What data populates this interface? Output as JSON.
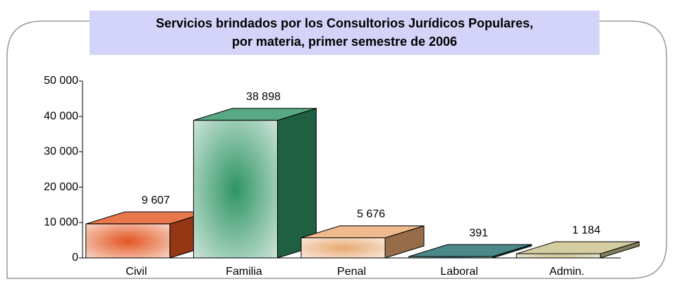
{
  "chart_data": {
    "type": "bar3d",
    "title": "Servicios brindados por los Consultorios Jurídicos Populares,\npor materia, primer semestre de 2006",
    "categories": [
      "Civil",
      "Familia",
      "Penal",
      "Laboral",
      "Admin."
    ],
    "values": [
      9607,
      38898,
      5676,
      391,
      1184
    ],
    "value_labels": [
      "9 607",
      "38 898",
      "5 676",
      "391",
      "1 184"
    ],
    "colors": [
      "#e2551f",
      "#2e9464",
      "#e8a870",
      "#1f6b6b",
      "#c8c08a"
    ],
    "ylim": [
      0,
      50000
    ],
    "yticks": [
      0,
      {
        "value": 10000,
        "label": "10 000"
      },
      {
        "value": 20000,
        "label": "20 000"
      },
      {
        "value": 30000,
        "label": "30 000"
      },
      {
        "value": 40000,
        "label": "40 000"
      },
      {
        "value": 50000,
        "label": "50 000"
      }
    ],
    "grid": false
  }
}
